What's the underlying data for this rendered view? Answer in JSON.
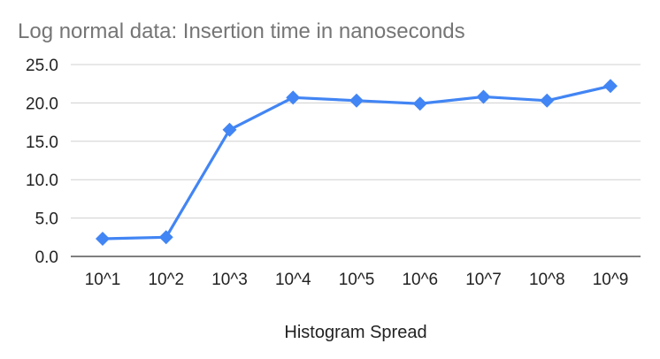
{
  "chart_data": {
    "type": "line",
    "title": "Log normal data: Insertion time in nanoseconds",
    "xlabel": "Histogram Spread",
    "ylabel": "",
    "categories": [
      "10^1",
      "10^2",
      "10^3",
      "10^4",
      "10^5",
      "10^6",
      "10^7",
      "10^8",
      "10^9"
    ],
    "series": [
      {
        "values": [
          2.3,
          2.5,
          16.5,
          20.7,
          20.3,
          19.9,
          20.8,
          20.3,
          22.2
        ],
        "color": "#4285f4",
        "marker": "diamond"
      }
    ],
    "ylim": [
      0,
      25
    ],
    "yticks": [
      "0.0",
      "5.0",
      "10.0",
      "15.0",
      "20.0",
      "25.0"
    ],
    "grid": true,
    "legend": "none"
  }
}
